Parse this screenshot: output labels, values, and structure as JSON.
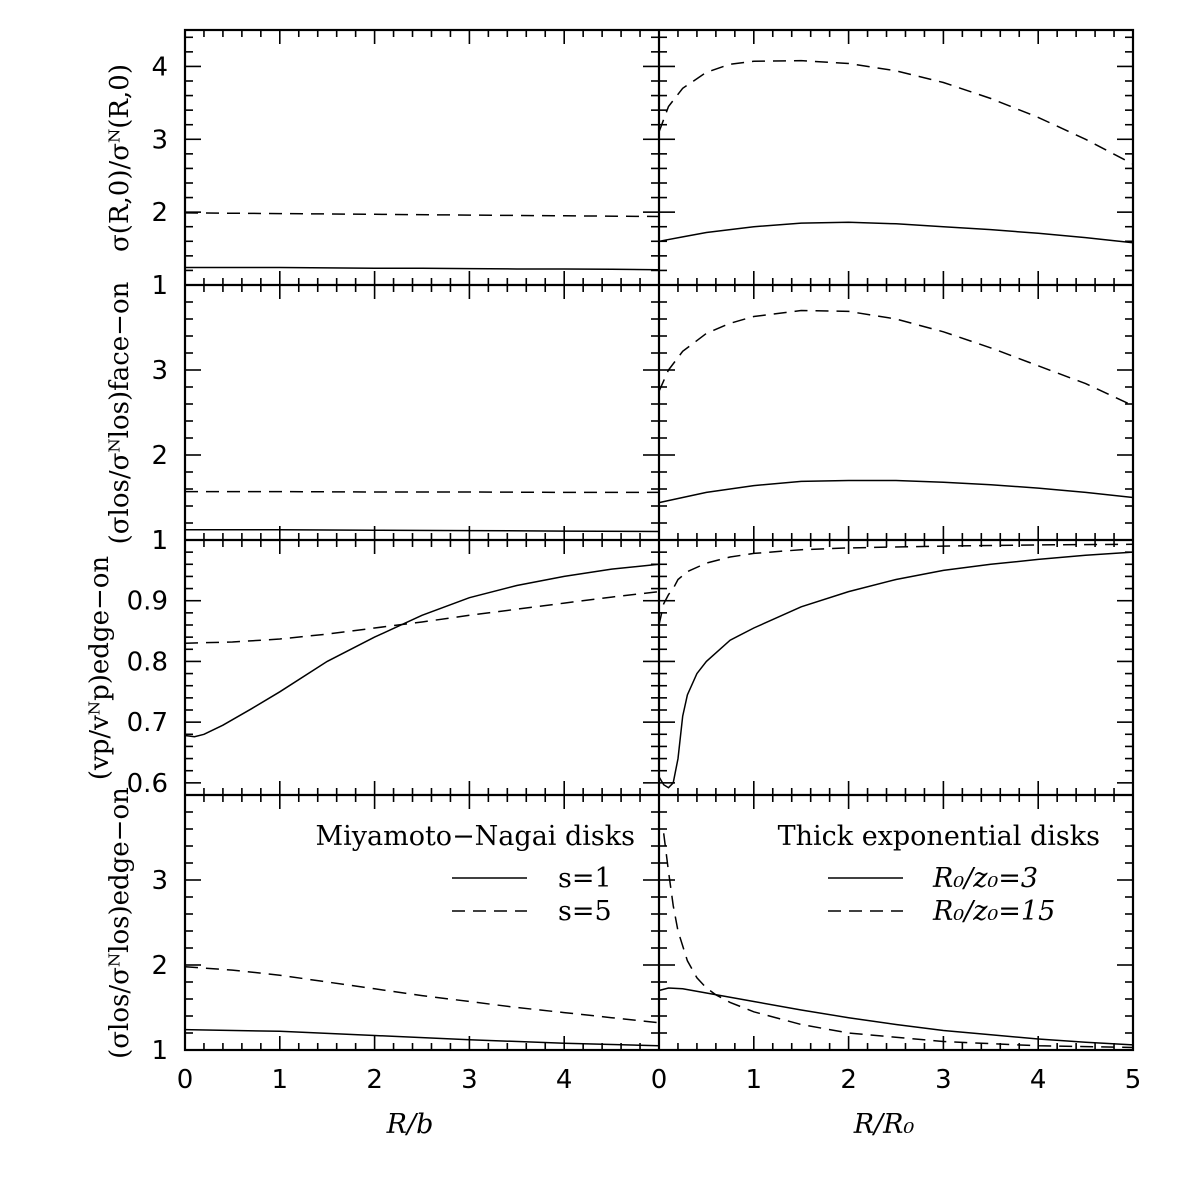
{
  "chart_data": {
    "type": "line",
    "panels": [
      {
        "id": "r1c1",
        "row": 0,
        "col": 0,
        "ylabel": "σ(R,0)/σ^N(R,0)",
        "xlim": [
          0,
          5
        ],
        "ylim": [
          1,
          4.5
        ],
        "series": [
          {
            "name": "s=1",
            "style": "solid",
            "x": [
              0,
              0.5,
              1,
              1.5,
              2,
              2.5,
              3,
              3.5,
              4,
              4.5,
              5
            ],
            "y": [
              1.24,
              1.24,
              1.24,
              1.235,
              1.23,
              1.23,
              1.225,
              1.22,
              1.22,
              1.215,
              1.21
            ]
          },
          {
            "name": "s=5",
            "style": "dashed",
            "x": [
              0,
              1,
              2,
              3,
              4,
              5
            ],
            "y": [
              1.99,
              1.98,
              1.97,
              1.96,
              1.95,
              1.94
            ]
          }
        ]
      },
      {
        "id": "r1c2",
        "row": 0,
        "col": 1,
        "xlim": [
          0,
          5
        ],
        "ylim": [
          1,
          4.5
        ],
        "series": [
          {
            "name": "R0/z0=3",
            "style": "solid",
            "x": [
              0,
              0.25,
              0.5,
              1,
              1.5,
              2,
              2.5,
              3,
              3.5,
              4,
              4.5,
              5
            ],
            "y": [
              1.6,
              1.66,
              1.72,
              1.8,
              1.85,
              1.86,
              1.84,
              1.8,
              1.76,
              1.71,
              1.65,
              1.58
            ]
          },
          {
            "name": "R0/z0=15",
            "style": "dashed",
            "x": [
              0,
              0.1,
              0.25,
              0.5,
              0.75,
              1,
              1.5,
              2,
              2.5,
              3,
              3.5,
              4,
              4.5,
              5
            ],
            "y": [
              3.1,
              3.45,
              3.7,
              3.92,
              4.03,
              4.07,
              4.08,
              4.04,
              3.94,
              3.78,
              3.56,
              3.3,
              3.0,
              2.66
            ]
          }
        ]
      },
      {
        "id": "r2c1",
        "row": 1,
        "col": 0,
        "ylabel": "(σ_los/σ^N_los)_face-on",
        "xlim": [
          0,
          5
        ],
        "ylim": [
          1,
          4
        ],
        "series": [
          {
            "name": "s=1",
            "style": "solid",
            "x": [
              0,
              1,
              2,
              3,
              4,
              5
            ],
            "y": [
              1.12,
              1.12,
              1.115,
              1.11,
              1.105,
              1.1
            ]
          },
          {
            "name": "s=5",
            "style": "dashed",
            "x": [
              0,
              1,
              2,
              3,
              4,
              5
            ],
            "y": [
              1.57,
              1.57,
              1.565,
              1.565,
              1.56,
              1.56
            ]
          }
        ]
      },
      {
        "id": "r2c2",
        "row": 1,
        "col": 1,
        "xlim": [
          0,
          5
        ],
        "ylim": [
          1,
          4
        ],
        "series": [
          {
            "name": "R0/z0=3",
            "style": "solid",
            "x": [
              0,
              0.25,
              0.5,
              1,
              1.5,
              2,
              2.5,
              3,
              3.5,
              4,
              4.5,
              5
            ],
            "y": [
              1.44,
              1.5,
              1.56,
              1.64,
              1.69,
              1.7,
              1.7,
              1.68,
              1.65,
              1.61,
              1.56,
              1.5
            ]
          },
          {
            "name": "R0/z0=15",
            "style": "dashed",
            "x": [
              0,
              0.1,
              0.25,
              0.5,
              0.75,
              1,
              1.5,
              2,
              2.5,
              3,
              3.5,
              4,
              4.5,
              5
            ],
            "y": [
              2.75,
              3.0,
              3.22,
              3.43,
              3.55,
              3.63,
              3.7,
              3.69,
              3.6,
              3.45,
              3.26,
              3.05,
              2.84,
              2.58
            ]
          }
        ]
      },
      {
        "id": "r3c1",
        "row": 2,
        "col": 0,
        "ylabel": "(v_p/v^N_p)_edge-on",
        "xlim": [
          0,
          5
        ],
        "ylim": [
          0.58,
          1
        ],
        "series": [
          {
            "name": "s=1",
            "style": "solid",
            "x": [
              0,
              0.1,
              0.2,
              0.4,
              0.7,
              1,
              1.5,
              2,
              2.5,
              3,
              3.5,
              4,
              4.5,
              5
            ],
            "y": [
              0.678,
              0.676,
              0.68,
              0.695,
              0.722,
              0.75,
              0.8,
              0.84,
              0.876,
              0.905,
              0.925,
              0.94,
              0.952,
              0.96
            ]
          },
          {
            "name": "s=5",
            "style": "dashed",
            "x": [
              0,
              0.5,
              1,
              1.5,
              2,
              2.5,
              3,
              3.5,
              4,
              4.5,
              5
            ],
            "y": [
              0.83,
              0.832,
              0.837,
              0.845,
              0.855,
              0.865,
              0.876,
              0.886,
              0.896,
              0.906,
              0.915
            ]
          }
        ]
      },
      {
        "id": "r3c2",
        "row": 2,
        "col": 1,
        "xlim": [
          0,
          5
        ],
        "ylim": [
          0.58,
          1
        ],
        "series": [
          {
            "name": "R0/z0=3",
            "style": "solid",
            "x": [
              0,
              0.05,
              0.1,
              0.15,
              0.2,
              0.25,
              0.3,
              0.4,
              0.5,
              0.75,
              1,
              1.5,
              2,
              2.5,
              3,
              3.5,
              4,
              4.5,
              5
            ],
            "y": [
              0.61,
              0.597,
              0.592,
              0.6,
              0.64,
              0.71,
              0.745,
              0.78,
              0.8,
              0.835,
              0.855,
              0.89,
              0.915,
              0.935,
              0.95,
              0.96,
              0.968,
              0.975,
              0.98
            ]
          },
          {
            "name": "R0/z0=15",
            "style": "dashed",
            "x": [
              0,
              0.05,
              0.1,
              0.15,
              0.2,
              0.3,
              0.5,
              0.75,
              1,
              1.5,
              2,
              3,
              4,
              5
            ],
            "y": [
              0.86,
              0.895,
              0.91,
              0.92,
              0.935,
              0.948,
              0.962,
              0.972,
              0.978,
              0.984,
              0.987,
              0.99,
              0.992,
              0.993
            ]
          }
        ]
      },
      {
        "id": "r4c1",
        "row": 3,
        "col": 0,
        "ylabel": "(σ_los/σ^N_los)_edge-on",
        "xlim": [
          0,
          5
        ],
        "ylim": [
          1,
          4
        ],
        "series": [
          {
            "name": "s=1",
            "style": "solid",
            "x": [
              0,
              1,
              2,
              3,
              4,
              5
            ],
            "y": [
              1.24,
              1.22,
              1.17,
              1.12,
              1.08,
              1.05
            ]
          },
          {
            "name": "s=5",
            "style": "dashed",
            "x": [
              0,
              0.5,
              1,
              1.5,
              2,
              2.5,
              3,
              3.5,
              4,
              4.5,
              5
            ],
            "y": [
              1.98,
              1.94,
              1.88,
              1.8,
              1.72,
              1.64,
              1.57,
              1.5,
              1.44,
              1.38,
              1.32
            ]
          }
        ]
      },
      {
        "id": "r4c2",
        "row": 3,
        "col": 1,
        "xlim": [
          0,
          5
        ],
        "ylim": [
          1,
          4
        ],
        "series": [
          {
            "name": "R0/z0=3",
            "style": "solid",
            "x": [
              0,
              0.1,
              0.25,
              0.5,
              0.75,
              1,
              1.5,
              2,
              2.5,
              3,
              3.5,
              4,
              4.5,
              5
            ],
            "y": [
              1.7,
              1.73,
              1.72,
              1.67,
              1.62,
              1.57,
              1.47,
              1.38,
              1.3,
              1.23,
              1.18,
              1.13,
              1.09,
              1.06
            ]
          },
          {
            "name": "R0/z0=15",
            "style": "dashed",
            "x": [
              0.05,
              0.1,
              0.15,
              0.2,
              0.3,
              0.4,
              0.5,
              0.6,
              0.75,
              1,
              1.5,
              2,
              3,
              4,
              5
            ],
            "y": [
              3.55,
              3.1,
              2.7,
              2.4,
              2.05,
              1.85,
              1.73,
              1.65,
              1.56,
              1.45,
              1.3,
              1.2,
              1.1,
              1.05,
              1.03
            ]
          }
        ]
      }
    ],
    "xticks": [
      0,
      1,
      2,
      3,
      4,
      5
    ],
    "xlabels": [
      "R/b",
      "R/R₀"
    ],
    "ytick_labels": {
      "r1": [
        "1",
        "2",
        "3",
        "4"
      ],
      "r2": [
        "1",
        "2",
        "3"
      ],
      "r3": [
        "0.6",
        "0.7",
        "0.8",
        "0.9",
        "1"
      ],
      "r4": [
        "1",
        "2",
        "3"
      ]
    }
  },
  "legend_left": {
    "title": "Miyamoto−Nagai disks",
    "entries": [
      "s=1",
      "s=5"
    ]
  },
  "legend_right": {
    "title": "Thick exponential disks",
    "entries": [
      "R₀/z₀=3",
      "R₀/z₀=15"
    ]
  },
  "ylabels": {
    "r1": "σ(R,0)/σᴺ(R,0)",
    "r2": "(σlos/σᴺlos)face−on",
    "r3": "(vp/vᴺp)edge−on",
    "r4": "(σlos/σᴺlos)edge−on"
  }
}
